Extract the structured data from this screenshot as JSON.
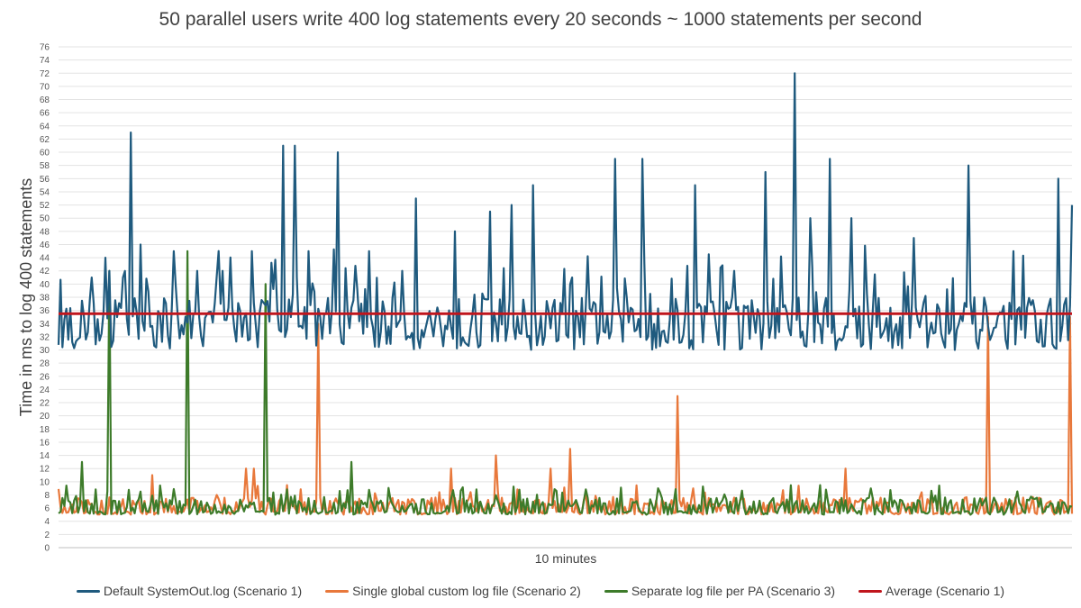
{
  "chart_data": {
    "type": "line",
    "title": "50 parallel users write 400 log statements every 20 seconds ~ 1000 statements per second",
    "xlabel": "10 minutes",
    "ylabel": "Time in ms to log 400 statements",
    "ylim": [
      0,
      76
    ],
    "yticks": [
      0,
      2,
      4,
      6,
      8,
      10,
      12,
      14,
      16,
      18,
      20,
      22,
      24,
      26,
      28,
      30,
      32,
      34,
      36,
      38,
      40,
      42,
      44,
      46,
      48,
      50,
      52,
      54,
      56,
      58,
      60,
      62,
      64,
      66,
      68,
      70,
      72,
      74,
      76
    ],
    "grid": true,
    "legend_position": "bottom",
    "series": [
      {
        "name": "Default SystemOut.log (Scenario 1)",
        "color": "#1f5a7e",
        "baseline": 35,
        "spikes": [
          {
            "x": 0.033,
            "y": 41
          },
          {
            "x": 0.047,
            "y": 44
          },
          {
            "x": 0.063,
            "y": 41
          },
          {
            "x": 0.071,
            "y": 63
          },
          {
            "x": 0.081,
            "y": 46
          },
          {
            "x": 0.113,
            "y": 45
          },
          {
            "x": 0.136,
            "y": 42
          },
          {
            "x": 0.161,
            "y": 42
          },
          {
            "x": 0.191,
            "y": 45
          },
          {
            "x": 0.222,
            "y": 61
          },
          {
            "x": 0.233,
            "y": 61
          },
          {
            "x": 0.247,
            "y": 45
          },
          {
            "x": 0.276,
            "y": 60
          },
          {
            "x": 0.307,
            "y": 45
          },
          {
            "x": 0.339,
            "y": 42
          },
          {
            "x": 0.352,
            "y": 53
          },
          {
            "x": 0.392,
            "y": 48
          },
          {
            "x": 0.426,
            "y": 51
          },
          {
            "x": 0.447,
            "y": 52
          },
          {
            "x": 0.469,
            "y": 55
          },
          {
            "x": 0.506,
            "y": 41
          },
          {
            "x": 0.549,
            "y": 59
          },
          {
            "x": 0.576,
            "y": 59
          },
          {
            "x": 0.629,
            "y": 55
          },
          {
            "x": 0.666,
            "y": 42
          },
          {
            "x": 0.698,
            "y": 57
          },
          {
            "x": 0.726,
            "y": 72
          },
          {
            "x": 0.741,
            "y": 50
          },
          {
            "x": 0.761,
            "y": 59
          },
          {
            "x": 0.783,
            "y": 50
          },
          {
            "x": 0.843,
            "y": 47
          },
          {
            "x": 0.898,
            "y": 58
          },
          {
            "x": 0.943,
            "y": 45
          },
          {
            "x": 0.986,
            "y": 56
          },
          {
            "x": 1.0,
            "y": 52
          }
        ]
      },
      {
        "name": "Single global custom log file (Scenario 2)",
        "color": "#e8783b",
        "baseline": 6,
        "spikes": [
          {
            "x": 0.092,
            "y": 11
          },
          {
            "x": 0.185,
            "y": 12
          },
          {
            "x": 0.192,
            "y": 12
          },
          {
            "x": 0.256,
            "y": 34
          },
          {
            "x": 0.387,
            "y": 12
          },
          {
            "x": 0.431,
            "y": 14
          },
          {
            "x": 0.485,
            "y": 12
          },
          {
            "x": 0.504,
            "y": 15
          },
          {
            "x": 0.611,
            "y": 23
          },
          {
            "x": 0.777,
            "y": 12
          },
          {
            "x": 0.918,
            "y": 35
          },
          {
            "x": 0.998,
            "y": 35
          }
        ]
      },
      {
        "name": "Separate log file per PA (Scenario 3)",
        "color": "#3d7b2a",
        "baseline": 6,
        "spikes": [
          {
            "x": 0.023,
            "y": 13
          },
          {
            "x": 0.051,
            "y": 42
          },
          {
            "x": 0.127,
            "y": 45
          },
          {
            "x": 0.204,
            "y": 40
          },
          {
            "x": 0.289,
            "y": 13
          }
        ]
      },
      {
        "name": "Average (Scenario 1)",
        "color": "#c0151c",
        "values": [
          35.5,
          35.5
        ]
      }
    ]
  }
}
